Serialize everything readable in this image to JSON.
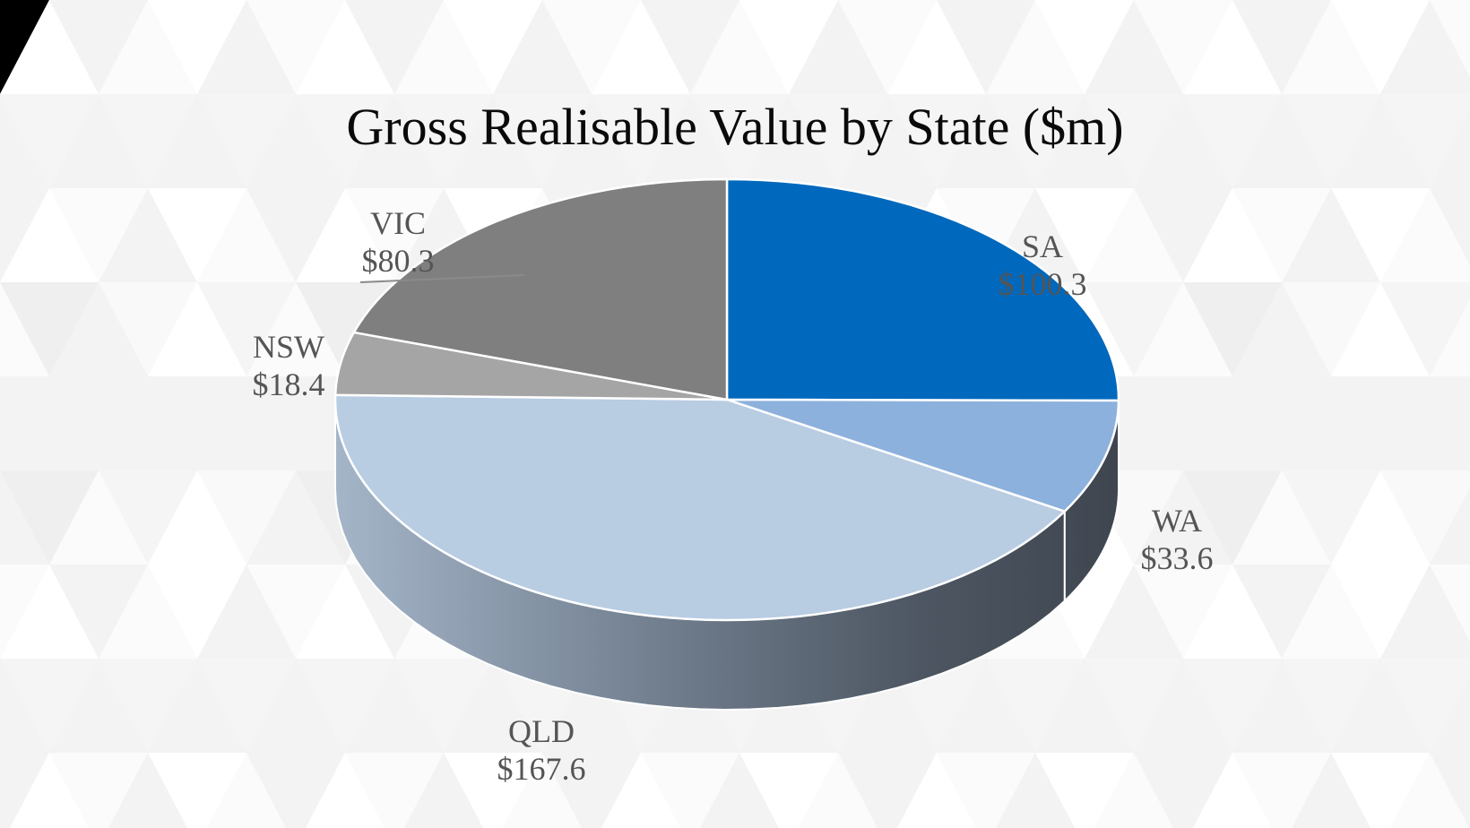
{
  "colors": {
    "SA": "#0068bd",
    "WA": "#8db1dd",
    "QLD": "#b8cce2",
    "NSW": "#a5a5a5",
    "VIC": "#7f7f7f",
    "label": "#555555",
    "title": "#0a0a0a"
  },
  "chart_data": {
    "type": "pie",
    "title": "Gross Realisable Value by State ($m)",
    "variant": "3d",
    "categories": [
      "SA",
      "WA",
      "QLD",
      "NSW",
      "VIC"
    ],
    "values": [
      100.3,
      33.6,
      167.6,
      18.4,
      80.3
    ],
    "data_labels": [
      "$100.3",
      "$33.6",
      "$167.6",
      "$18.4",
      "$80.3"
    ],
    "legend": "none"
  }
}
